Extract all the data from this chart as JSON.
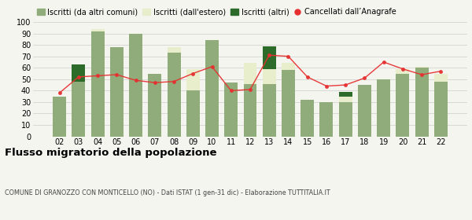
{
  "years": [
    "02",
    "03",
    "04",
    "05",
    "06",
    "07",
    "08",
    "09",
    "10",
    "11",
    "12",
    "13",
    "14",
    "15",
    "16",
    "17",
    "18",
    "19",
    "20",
    "21",
    "22"
  ],
  "iscritti_altri_comuni": [
    35,
    48,
    92,
    78,
    90,
    55,
    73,
    40,
    84,
    47,
    46,
    46,
    58,
    32,
    30,
    30,
    45,
    50,
    55,
    60,
    48
  ],
  "iscritti_estero": [
    0,
    0,
    2,
    0,
    0,
    0,
    5,
    19,
    0,
    0,
    18,
    13,
    6,
    0,
    0,
    5,
    0,
    0,
    4,
    1,
    7
  ],
  "iscritti_altri": [
    0,
    15,
    0,
    0,
    0,
    0,
    0,
    0,
    0,
    0,
    0,
    20,
    0,
    0,
    0,
    4,
    0,
    0,
    0,
    0,
    0
  ],
  "cancellati": [
    38,
    52,
    53,
    54,
    49,
    47,
    48,
    55,
    61,
    40,
    41,
    71,
    70,
    52,
    44,
    45,
    51,
    65,
    59,
    54,
    57
  ],
  "color_altri_comuni": "#8fac7a",
  "color_estero": "#e8edcc",
  "color_altri": "#2d6b2a",
  "color_cancellati": "#e63030",
  "bg_color": "#f5f5f0",
  "title": "Flusso migratorio della popolazione",
  "subtitle": "COMUNE DI GRANOZZO CON MONTICELLO (NO) - Dati ISTAT (1 gen-31 dic) - Elaborazione TUTTITALIA.IT",
  "legend_labels": [
    "Iscritti (da altri comuni)",
    "Iscritti (dall'estero)",
    "Iscritti (altri)",
    "Cancellati dall’Anagrafe"
  ],
  "ylim": [
    0,
    100
  ],
  "yticks": [
    0,
    10,
    20,
    30,
    40,
    50,
    60,
    70,
    80,
    90,
    100
  ]
}
